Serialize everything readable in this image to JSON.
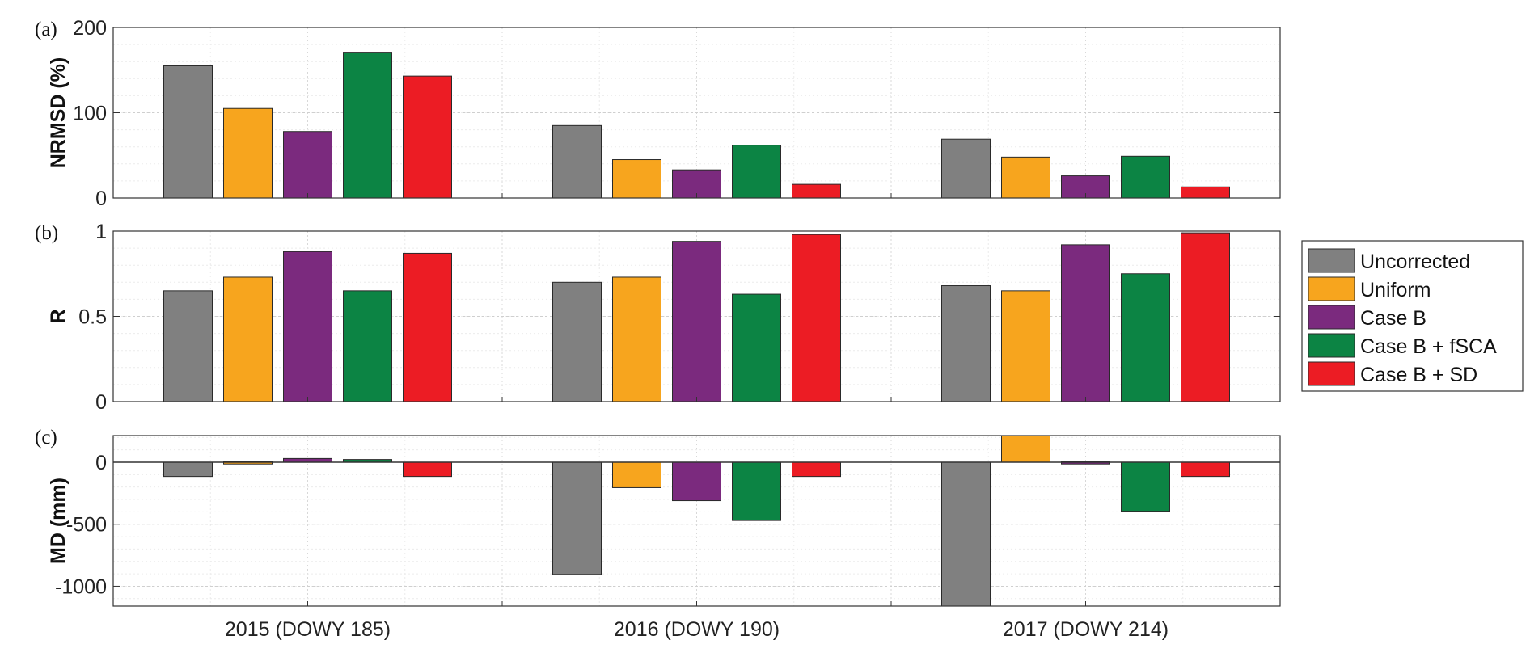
{
  "chart_data": {
    "type": "bar",
    "categories": [
      "2015 (DOWY 185)",
      "2016 (DOWY 190)",
      "2017 (DOWY 214)"
    ],
    "legend": {
      "placement": "right",
      "entries": [
        "Uncorrected",
        "Uniform",
        "Case B",
        "Case B + fSCA",
        "Case B + SD"
      ]
    },
    "colors": {
      "Uncorrected": "#808080",
      "Uniform": "#f7a51e",
      "Case B": "#7b2a7e",
      "Case B + fSCA": "#0c8444",
      "Case B + SD": "#ec1c24"
    },
    "grid": true,
    "panels": [
      {
        "label": "(a)",
        "ylabel": "NRMSD (%)",
        "ylim": [
          0,
          200
        ],
        "yticks": [
          0,
          100,
          200
        ],
        "series": [
          {
            "name": "Uncorrected",
            "values": [
              155,
              85,
              69
            ]
          },
          {
            "name": "Uniform",
            "values": [
              105,
              45,
              48
            ]
          },
          {
            "name": "Case B",
            "values": [
              78,
              33,
              26
            ]
          },
          {
            "name": "Case B + fSCA",
            "values": [
              171,
              62,
              49
            ]
          },
          {
            "name": "Case B + SD",
            "values": [
              143,
              16,
              13
            ]
          }
        ]
      },
      {
        "label": "(b)",
        "ylabel": "R",
        "ylim": [
          0,
          1
        ],
        "yticks": [
          0,
          0.5,
          1
        ],
        "series": [
          {
            "name": "Uncorrected",
            "values": [
              0.65,
              0.7,
              0.68
            ]
          },
          {
            "name": "Uniform",
            "values": [
              0.73,
              0.73,
              0.65
            ]
          },
          {
            "name": "Case B",
            "values": [
              0.88,
              0.94,
              0.92
            ]
          },
          {
            "name": "Case B + fSCA",
            "values": [
              0.65,
              0.63,
              0.75
            ]
          },
          {
            "name": "Case B + SD",
            "values": [
              0.87,
              0.98,
              0.99
            ]
          }
        ]
      },
      {
        "label": "(c)",
        "ylabel": "MD (mm)",
        "ylim": [
          -1160,
          215
        ],
        "yticks": [
          -1000,
          -500,
          0
        ],
        "series": [
          {
            "name": "Uncorrected",
            "values": [
              -115,
              -905,
              -1160
            ]
          },
          {
            "name": "Uniform",
            "values": [
              -8,
              -205,
              215
            ]
          },
          {
            "name": "Case B",
            "values": [
              30,
              -310,
              -8
            ]
          },
          {
            "name": "Case B + fSCA",
            "values": [
              22,
              -470,
              -395
            ]
          },
          {
            "name": "Case B + SD",
            "values": [
              -115,
              -115,
              -115
            ]
          }
        ]
      }
    ]
  }
}
